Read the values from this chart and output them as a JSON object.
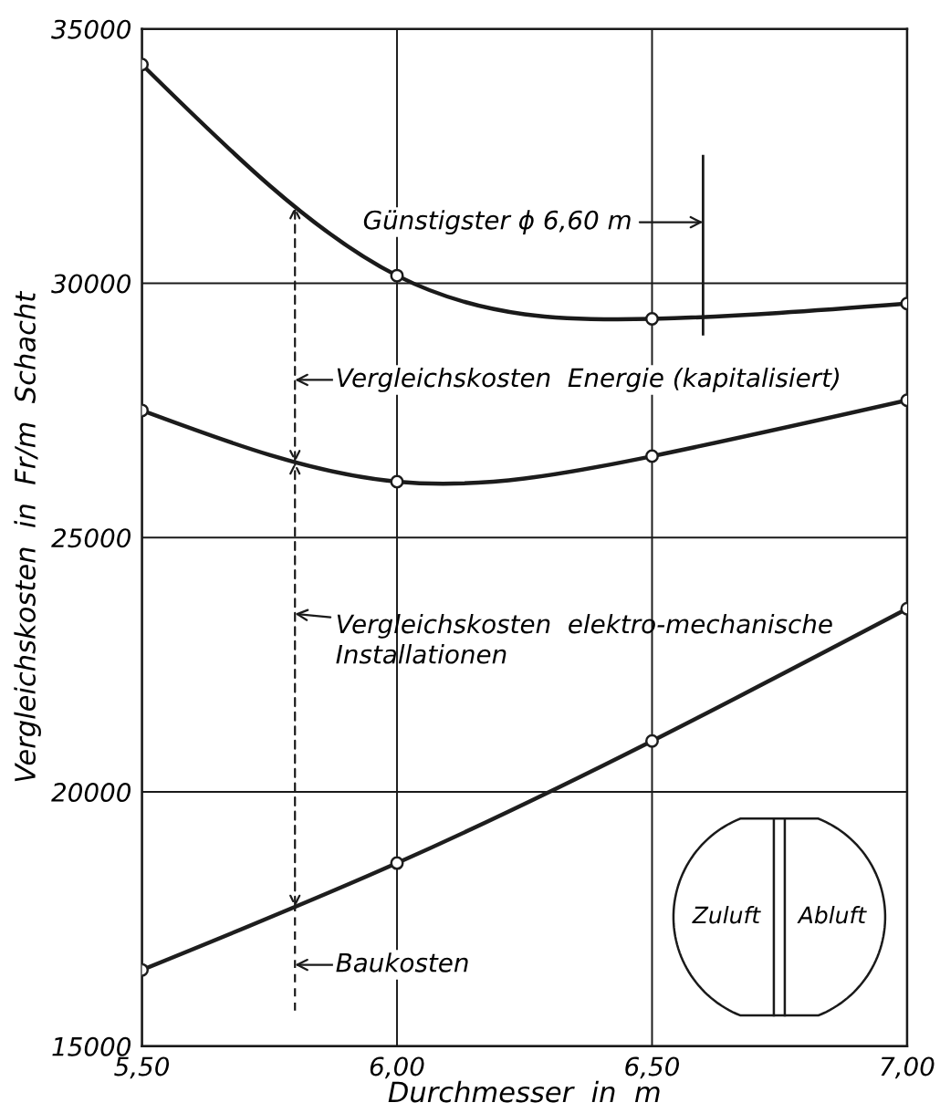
{
  "chart_data": {
    "type": "line",
    "xlabel": "Durchmesser  in  m",
    "ylabel": "Vergleichskosten  in  Fr/m  Schacht",
    "x": [
      5.5,
      6.0,
      6.5,
      7.0
    ],
    "series": [
      {
        "color": "#1a1a1a",
        "values": [
          34300,
          30150,
          29300,
          29600
        ]
      },
      {
        "color": "#1c1c1c",
        "values": [
          27500,
          26100,
          26600,
          27700
        ]
      },
      {
        "color": "#1e1e1e",
        "values": [
          16500,
          18600,
          21000,
          23600
        ]
      }
    ],
    "xlim": [
      5.5,
      7.0
    ],
    "xticks": [
      {
        "value": 5.5,
        "label": "5,50"
      },
      {
        "value": 6.0,
        "label": "6,00"
      },
      {
        "value": 6.5,
        "label": "6,50"
      },
      {
        "value": 7.0,
        "label": "7,00"
      }
    ],
    "ylim": [
      15000,
      35000
    ],
    "yticks": [
      15000,
      20000,
      25000,
      30000,
      35000
    ],
    "grid": true,
    "marker": "circle",
    "line_style": "solid",
    "ref_lines": [
      {
        "axis": "x",
        "value": 6.6,
        "label": "Günstigster ϕ 6,60 m"
      }
    ],
    "annotations": [
      "Vergleichskosten  Energie (kapitalisiert)",
      "Vergleichskosten  elektro-mechanische\nInstallationen",
      "Baukosten",
      "Zuluft",
      "Abluft"
    ]
  }
}
